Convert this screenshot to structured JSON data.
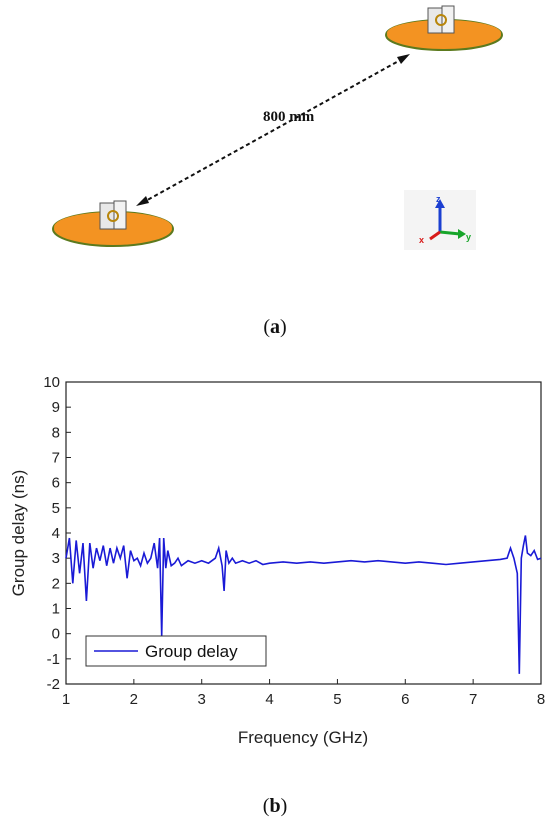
{
  "figure_a": {
    "distance_label": "800 mm",
    "panel_label": "a",
    "axis_labels": {
      "z": "z",
      "y": "y",
      "x": "x"
    },
    "colors": {
      "disk": "#f39322",
      "disk_edge": "#5c7a1e",
      "z_axis": "#1b3fd1",
      "y_axis": "#17a52a",
      "x_axis": "#d81a1a"
    }
  },
  "figure_b": {
    "panel_label": "b",
    "chart_data": {
      "type": "line",
      "title": "",
      "xlabel": "Frequency (GHz)",
      "ylabel": "Group delay (ns)",
      "xlim": [
        1,
        8
      ],
      "ylim": [
        -2,
        10
      ],
      "x_ticks": [
        "1",
        "2",
        "3",
        "4",
        "5",
        "6",
        "7",
        "8"
      ],
      "y_ticks": [
        "-2",
        "-1",
        "0",
        "1",
        "2",
        "3",
        "4",
        "5",
        "6",
        "7",
        "8",
        "9",
        "10"
      ],
      "grid": false,
      "legend_position": "bottom-left",
      "series": [
        {
          "name": "Group delay",
          "color": "#1a1ad6",
          "x": [
            1.0,
            1.05,
            1.1,
            1.15,
            1.2,
            1.25,
            1.3,
            1.35,
            1.4,
            1.45,
            1.5,
            1.55,
            1.6,
            1.65,
            1.7,
            1.75,
            1.8,
            1.85,
            1.9,
            1.95,
            2.0,
            2.05,
            2.1,
            2.15,
            2.2,
            2.25,
            2.3,
            2.35,
            2.38,
            2.41,
            2.44,
            2.47,
            2.5,
            2.55,
            2.6,
            2.65,
            2.7,
            2.8,
            2.9,
            3.0,
            3.1,
            3.2,
            3.25,
            3.3,
            3.33,
            3.36,
            3.4,
            3.45,
            3.5,
            3.6,
            3.7,
            3.8,
            3.9,
            4.0,
            4.2,
            4.4,
            4.6,
            4.8,
            5.0,
            5.2,
            5.4,
            5.6,
            5.8,
            6.0,
            6.2,
            6.4,
            6.6,
            6.8,
            7.0,
            7.2,
            7.4,
            7.5,
            7.55,
            7.6,
            7.65,
            7.68,
            7.71,
            7.74,
            7.77,
            7.8,
            7.85,
            7.9,
            7.95,
            8.0
          ],
          "y": [
            3.0,
            3.8,
            2.0,
            3.7,
            2.4,
            3.6,
            1.3,
            3.6,
            2.6,
            3.4,
            2.9,
            3.5,
            2.7,
            3.4,
            2.8,
            3.4,
            3.0,
            3.5,
            2.2,
            3.3,
            2.9,
            3.0,
            2.7,
            3.2,
            2.8,
            3.0,
            3.6,
            2.6,
            3.8,
            -0.1,
            3.8,
            2.6,
            3.3,
            2.7,
            2.8,
            3.0,
            2.7,
            2.9,
            2.8,
            2.9,
            2.8,
            3.0,
            3.4,
            2.7,
            1.7,
            3.3,
            2.8,
            3.0,
            2.8,
            2.9,
            2.8,
            2.9,
            2.75,
            2.8,
            2.85,
            2.8,
            2.85,
            2.8,
            2.85,
            2.9,
            2.85,
            2.9,
            2.85,
            2.8,
            2.85,
            2.8,
            2.75,
            2.8,
            2.85,
            2.9,
            2.95,
            3.0,
            3.4,
            3.0,
            2.4,
            -1.6,
            3.0,
            3.5,
            3.9,
            3.2,
            3.1,
            3.3,
            2.95,
            3.0
          ]
        }
      ]
    }
  }
}
